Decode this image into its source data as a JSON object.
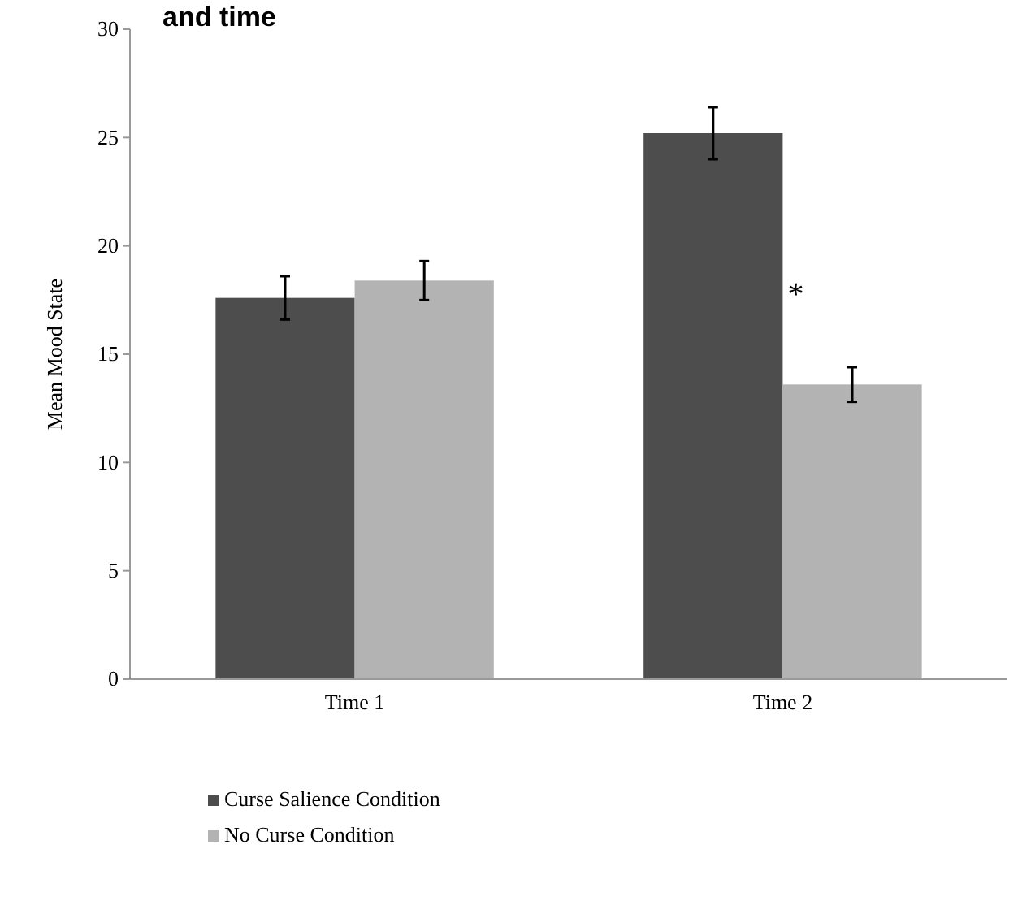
{
  "chart_data": {
    "type": "bar",
    "title": "and time",
    "ylabel": "Mean Mood State",
    "categories": [
      "Time 1",
      "Time 2"
    ],
    "series": [
      {
        "name": "Curse Salience Condition",
        "color": "#4d4d4d",
        "values": [
          17.6,
          25.2
        ],
        "errors": [
          1.0,
          1.2
        ]
      },
      {
        "name": "No Curse Condition",
        "color": "#b3b3b3",
        "values": [
          18.4,
          13.6
        ],
        "errors": [
          0.9,
          0.8
        ]
      }
    ],
    "ylim": [
      0,
      30
    ],
    "yticks": [
      0,
      5,
      10,
      15,
      20,
      25,
      30
    ],
    "grid": false,
    "legend": "bottom left",
    "annotations": [
      {
        "text": "*",
        "x": "Time 2",
        "y": 17.9
      }
    ]
  }
}
